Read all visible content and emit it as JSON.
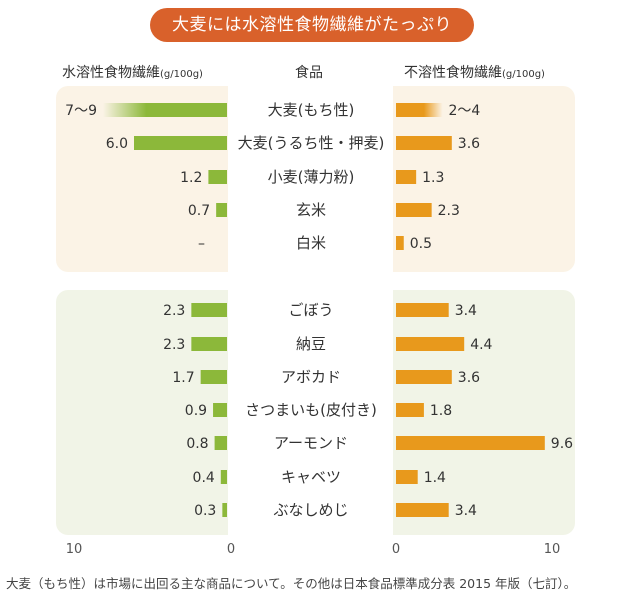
{
  "banner": "大麦には水溶性食物繊維がたっぷり",
  "headers": {
    "soluble": "水溶性食物繊維",
    "soluble_unit": "(g/100g)",
    "food": "食品",
    "insoluble": "不溶性食物繊維",
    "insoluble_unit": "(g/100g)"
  },
  "colors": {
    "soluble_bar": "#8cb83a",
    "insoluble_bar": "#e8991c",
    "banner": "#d9612b",
    "grains_bg": "#fbf3e6",
    "others_bg": "#f1f4e7"
  },
  "chart_data": {
    "type": "bar",
    "title": "大麦には水溶性食物繊維がたっぷり",
    "categories": [
      "大麦(もち性)",
      "大麦(うるち性・押麦)",
      "小麦(薄力粉)",
      "玄米",
      "白米",
      "ごぼう",
      "納豆",
      "アボカド",
      "さつまいも(皮付き)",
      "アーモンド",
      "キャベツ",
      "ぶなしめじ"
    ],
    "groups": [
      [
        0,
        1,
        2,
        3,
        4
      ],
      [
        5,
        6,
        7,
        8,
        9,
        10,
        11
      ]
    ],
    "series": [
      {
        "name": "水溶性食物繊維",
        "values": [
          8,
          6.0,
          1.2,
          0.7,
          0,
          2.3,
          2.3,
          1.7,
          0.9,
          0.8,
          0.4,
          0.3
        ],
        "labels": [
          "7〜9",
          "6.0",
          "1.2",
          "0.7",
          "–",
          "2.3",
          "2.3",
          "1.7",
          "0.9",
          "0.8",
          "0.4",
          "0.3"
        ],
        "range": [
          7,
          9
        ],
        "range_index": 0
      },
      {
        "name": "不溶性食物繊維",
        "values": [
          3,
          3.6,
          1.3,
          2.3,
          0.5,
          3.4,
          4.4,
          3.6,
          1.8,
          9.6,
          1.4,
          3.4
        ],
        "labels": [
          "2〜4",
          "3.6",
          "1.3",
          "2.3",
          "0.5",
          "3.4",
          "4.4",
          "3.6",
          "1.8",
          "9.6",
          "1.4",
          "3.4"
        ],
        "range": [
          2,
          4
        ],
        "range_index": 0
      }
    ],
    "xlim": [
      0,
      10
    ],
    "axis_ticks_left": [
      "10",
      "0"
    ],
    "axis_ticks_right": [
      "0",
      "10"
    ]
  },
  "footnote": "大麦（もち性）は市場に出回る主な商品について。その他は日本食品標準成分表 2015 年版（七訂）。"
}
